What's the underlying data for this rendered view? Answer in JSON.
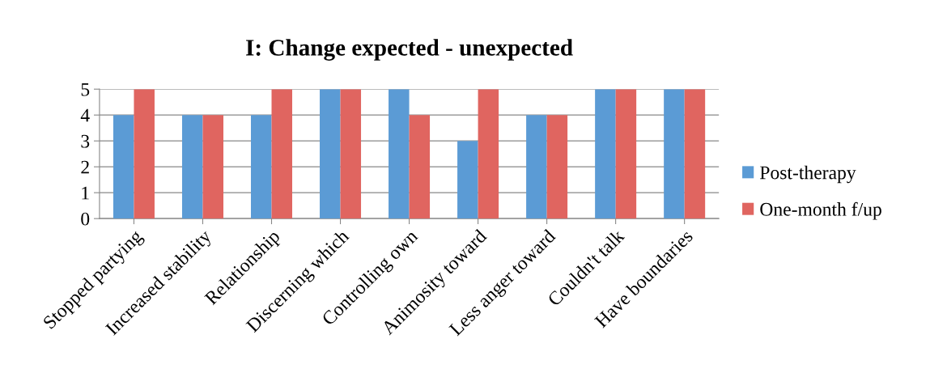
{
  "chart_data": {
    "type": "bar",
    "title": "I: Change expected - unexpected",
    "categories": [
      "Stopped partying",
      "Increased stability",
      "Relationship",
      "Discerning which",
      "Controlling own",
      "Animosity toward",
      "Less anger toward",
      "Couldn't talk",
      "Have boundaries"
    ],
    "series": [
      {
        "name": "Post-therapy",
        "color": "#5b9bd5",
        "values": [
          4,
          4,
          4,
          5,
          5,
          3,
          4,
          5,
          5
        ]
      },
      {
        "name": "One-month f/up",
        "color": "#e06560",
        "values": [
          5,
          4,
          5,
          5,
          4,
          5,
          4,
          5,
          5
        ]
      }
    ],
    "ylim": [
      0,
      5
    ],
    "yticks": [
      0,
      1,
      2,
      3,
      4,
      5
    ],
    "grid": "y",
    "legend": "right"
  }
}
